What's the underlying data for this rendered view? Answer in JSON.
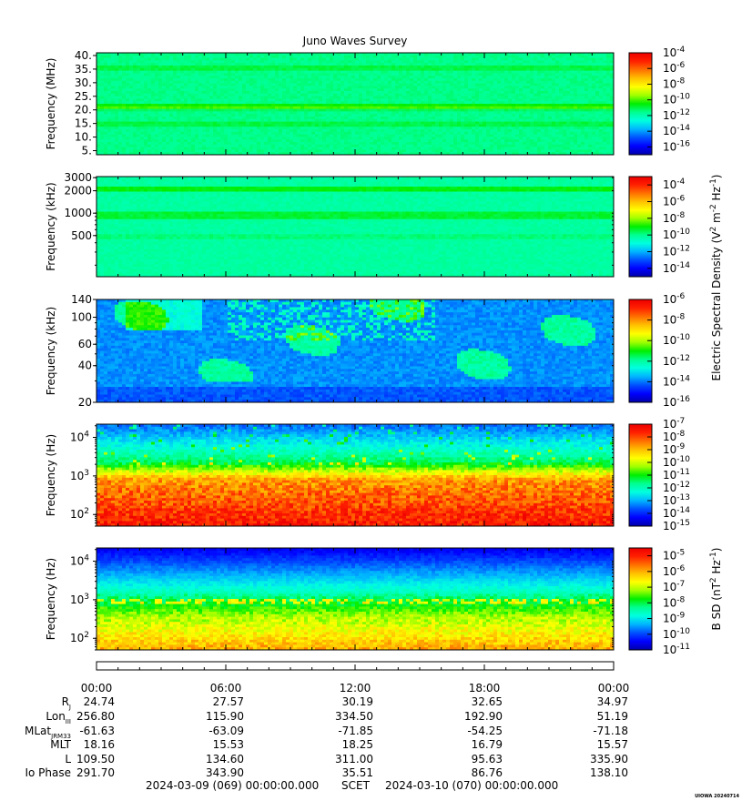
{
  "title": "Juno Waves Survey",
  "watermark": "UIOWA 20240714",
  "colors": {
    "colormap": [
      "#0000aa",
      "#0000ff",
      "#0050ff",
      "#00b4ff",
      "#00ffe0",
      "#00ff90",
      "#00ee00",
      "#a0ff00",
      "#ffff00",
      "#ffc000",
      "#ff7000",
      "#ff2000",
      "#ee0000"
    ]
  },
  "panels": [
    {
      "id": "p1",
      "ylabel": "Frequency (MHz)",
      "yscale": "linear",
      "ylim": [
        3.5,
        41
      ],
      "yticks": [
        "5.",
        "10.",
        "15.",
        "20.",
        "25.",
        "30.",
        "35.",
        "40."
      ],
      "cbar_ticks": [
        "-16",
        "-14",
        "-12",
        "-10",
        "-8",
        "-6",
        "-4"
      ],
      "cbar_range": [
        -17,
        -4
      ]
    },
    {
      "id": "p2",
      "ylabel": "Frequency (kHz)",
      "yscale": "log",
      "ylim": [
        140,
        3100
      ],
      "yticks": [
        "500",
        "1000",
        "2000",
        "3000"
      ],
      "cbar_ticks": [
        "-14",
        "-12",
        "-10",
        "-8",
        "-6",
        "-4"
      ],
      "cbar_range": [
        -15,
        -3
      ]
    },
    {
      "id": "p3",
      "ylabel": "Frequency (kHz)",
      "yscale": "log",
      "ylim": [
        20,
        140
      ],
      "yticks": [
        "20",
        "40",
        "60",
        "100",
        "140"
      ],
      "cbar_ticks": [
        "-16",
        "-14",
        "-12",
        "-10",
        "-8",
        "-6"
      ],
      "cbar_range": [
        -16,
        -6
      ]
    },
    {
      "id": "p4",
      "ylabel": "Frequency (Hz)",
      "yscale": "log",
      "ylim": [
        50,
        22000
      ],
      "yticks": [
        {
          "base": "10",
          "exp": "2"
        },
        {
          "base": "10",
          "exp": "3"
        },
        {
          "base": "10",
          "exp": "4"
        }
      ],
      "cbar_ticks": [
        "-15",
        "-14",
        "-13",
        "-12",
        "-11",
        "-10",
        "-9",
        "-8",
        "-7"
      ],
      "cbar_range": [
        -15,
        -7
      ]
    },
    {
      "id": "p5",
      "ylabel": "Frequency (Hz)",
      "yscale": "log",
      "ylim": [
        50,
        22000
      ],
      "yticks": [
        {
          "base": "10",
          "exp": "2"
        },
        {
          "base": "10",
          "exp": "3"
        },
        {
          "base": "10",
          "exp": "4"
        }
      ],
      "cbar_ticks": [
        "-11",
        "-10",
        "-9",
        "-8",
        "-7",
        "-6",
        "-5"
      ],
      "cbar_range": [
        -11,
        -4.5
      ]
    }
  ],
  "cbar_label_e": {
    "pre": "Electric Spectral Density (V",
    "s1": "2",
    "mid": " m",
    "s2": "-2",
    "mid2": " Hz",
    "s3": "-1",
    "post": ")"
  },
  "cbar_label_b": {
    "pre": "B SD (nT",
    "s1": "2",
    "mid": " Hz",
    "s2": "-1",
    "post": ")"
  },
  "chart_data": {
    "type": "heatmap",
    "x_axis": {
      "label": "SCET",
      "start": "2024-03-09 (069) 00:00:00.000",
      "end": "2024-03-10 (070) 00:00:00.000",
      "ticks": [
        "00:00",
        "06:00",
        "12:00",
        "18:00",
        "00:00"
      ]
    },
    "ephemeris": [
      {
        "label": "R",
        "sub": "J",
        "values": [
          "24.74",
          "27.57",
          "30.19",
          "32.65",
          "34.97"
        ]
      },
      {
        "label": "Lon",
        "sub": "III",
        "values": [
          "256.80",
          "115.90",
          "334.50",
          "192.90",
          "51.19"
        ]
      },
      {
        "label": "MLat",
        "sub": "JRM33",
        "values": [
          "-61.63",
          "-63.09",
          "-71.85",
          "-54.25",
          "-71.18"
        ]
      },
      {
        "label": "MLT",
        "sub": "",
        "values": [
          "18.16",
          "15.53",
          "18.25",
          "16.79",
          "15.57"
        ]
      },
      {
        "label": "L",
        "sub": "",
        "values": [
          "109.50",
          "134.60",
          "311.00",
          "95.63",
          "335.90"
        ]
      },
      {
        "label": "Io Phase",
        "sub": "",
        "values": [
          "291.70",
          "343.90",
          "35.51",
          "86.76",
          "138.10"
        ]
      }
    ]
  },
  "footer": {
    "start": "2024-03-09 (069) 00:00:00.000",
    "mid": "SCET",
    "end": "2024-03-10 (070) 00:00:00.000"
  }
}
